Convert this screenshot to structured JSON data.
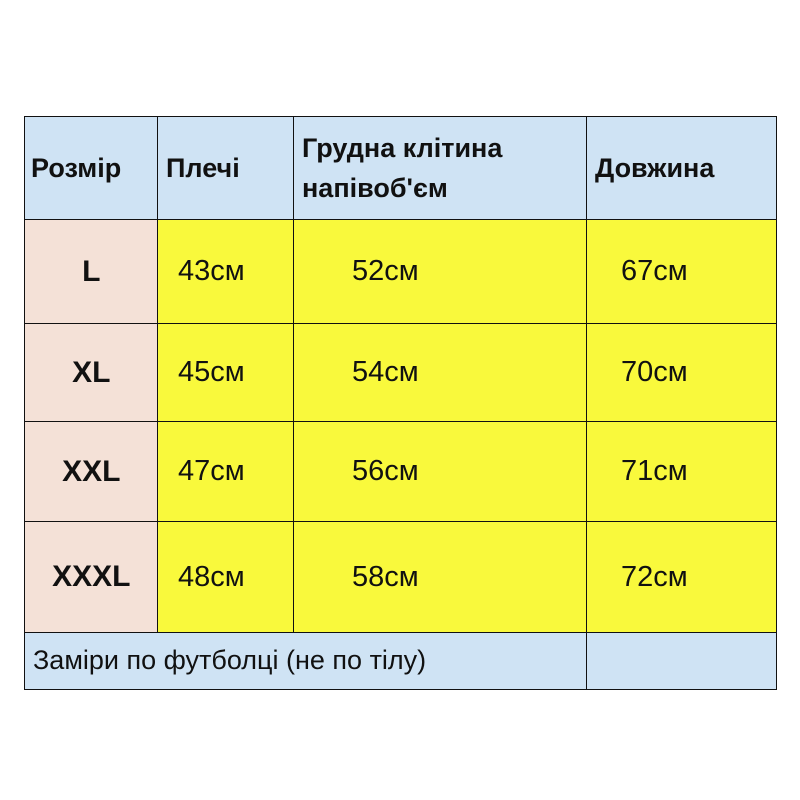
{
  "table": {
    "header": [
      "Розмір",
      "Плечі",
      "Грудна клітина напівоб'єм",
      "Довжина"
    ],
    "rows": [
      [
        "L",
        "43см",
        "52см",
        "67см"
      ],
      [
        "XL",
        "45см",
        "54см",
        "70см"
      ],
      [
        "XXL",
        "47см",
        "56см",
        "71см"
      ],
      [
        "XXXL",
        "48см",
        "58см",
        "72см"
      ]
    ],
    "footer": "Заміри по футболці (не по тілу)"
  }
}
